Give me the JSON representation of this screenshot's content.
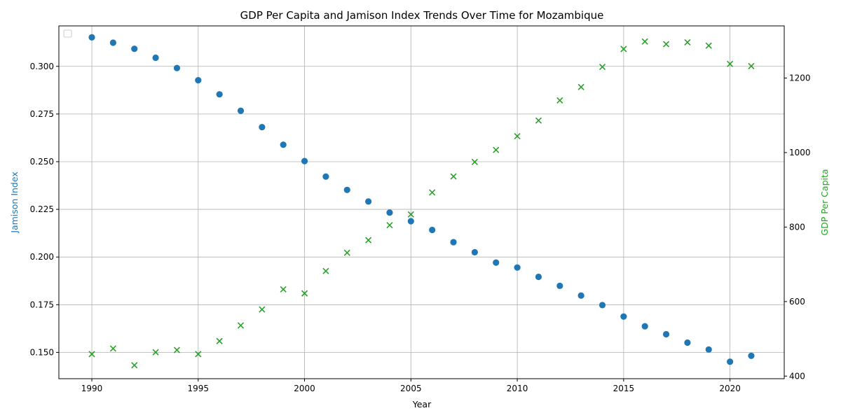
{
  "chart_data": {
    "type": "scatter",
    "title": "GDP Per Capita and Jamison Index Trends Over Time for Mozambique",
    "xlabel": "Year",
    "ylabel_left": "Jamison Index",
    "ylabel_right": "GDP Per Capita",
    "x": [
      1990,
      1991,
      1992,
      1993,
      1994,
      1995,
      1996,
      1997,
      1998,
      1999,
      2000,
      2001,
      2002,
      2003,
      2004,
      2005,
      2006,
      2007,
      2008,
      2009,
      2010,
      2011,
      2012,
      2013,
      2014,
      2015,
      2016,
      2017,
      2018,
      2019,
      2020,
      2021
    ],
    "xlim": [
      1988.45,
      1992.55
    ],
    "xticks": [
      1990,
      1995,
      2000,
      2005,
      2010,
      2015,
      2020
    ],
    "grid": true,
    "legend": "top-left",
    "series": [
      {
        "axis": "left",
        "marker": "circle",
        "color": "#1f77b4",
        "values": [
          0.3152,
          0.3124,
          0.3092,
          0.3045,
          0.2991,
          0.2927,
          0.2853,
          0.2767,
          0.2681,
          0.2589,
          0.2503,
          0.2422,
          0.2352,
          0.2291,
          0.2233,
          0.2188,
          0.2142,
          0.2078,
          0.2025,
          0.1971,
          0.1945,
          0.1896,
          0.1849,
          0.1798,
          0.1748,
          0.1688,
          0.1637,
          0.1595,
          0.1551,
          0.1515,
          0.1451,
          0.1482
        ]
      },
      {
        "axis": "right",
        "marker": "x",
        "color": "#2ca02c",
        "values": [
          459,
          474,
          429,
          464,
          470,
          459,
          494,
          536,
          579,
          633,
          622,
          682,
          731,
          765,
          805,
          834,
          893,
          936,
          975,
          1007,
          1044,
          1086,
          1140,
          1176,
          1230,
          1278,
          1298,
          1291,
          1296,
          1287,
          1238,
          1232
        ]
      }
    ],
    "ylim_left": [
      0.1362,
      0.3212
    ],
    "yticks_left": [
      0.15,
      0.175,
      0.2,
      0.225,
      0.25,
      0.275,
      0.3
    ],
    "ylim_right": [
      393,
      1340
    ],
    "yticks_right": [
      400,
      600,
      800,
      1000,
      1200
    ]
  }
}
